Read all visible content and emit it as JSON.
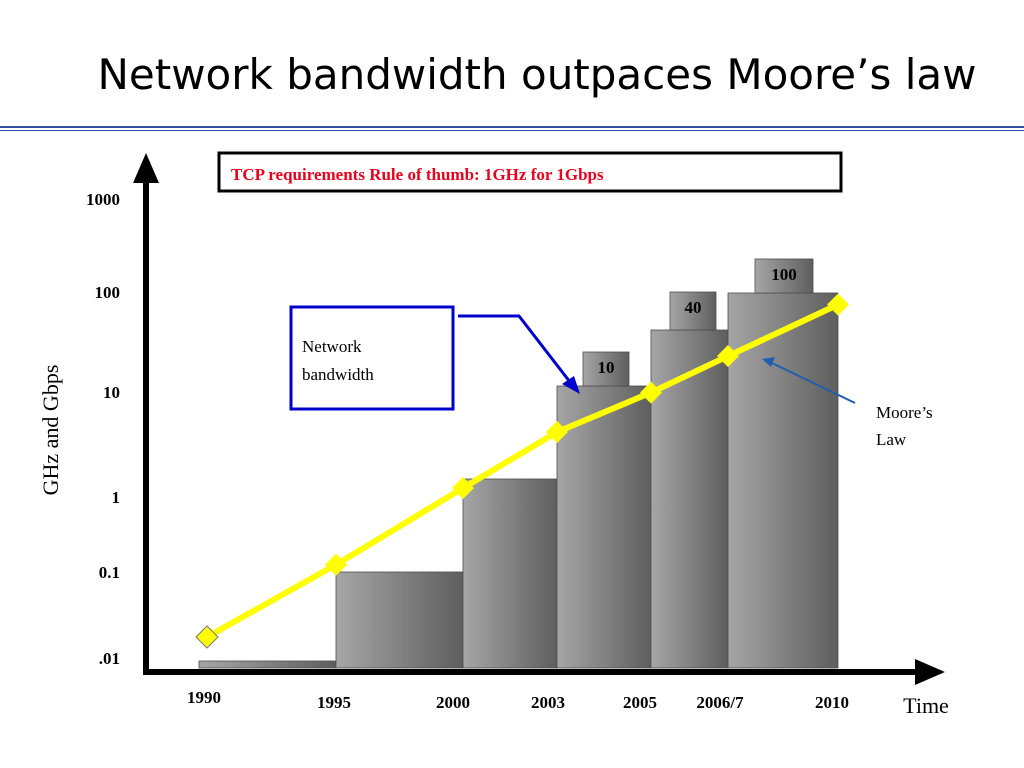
{
  "slide_title": "Network bandwidth outpaces Moore’s law",
  "colors": {
    "title_rule": "#2f4fa8",
    "bar_light": "#a6a6a6",
    "bar_dark": "#5e5e5e",
    "moore_line": "#ffff00",
    "callout_border": "#0000cc",
    "rule_text": "#e8001c",
    "moore_pointer": "#1f5fb0"
  },
  "chart_data": {
    "type": "bar",
    "title": "",
    "xlabel": "Time",
    "ylabel": "GHz and Gbps",
    "y_scale": "log",
    "ylim": [
      0.01,
      1000
    ],
    "y_ticks": [
      {
        "value": 1000,
        "label": "1000"
      },
      {
        "value": 100,
        "label": "100"
      },
      {
        "value": 10,
        "label": "10"
      },
      {
        "value": 1,
        "label": "1"
      },
      {
        "value": 0.1,
        "label": "0.1"
      },
      {
        "value": 0.01,
        "label": ".01"
      }
    ],
    "x_tick_labels": [
      "1990",
      "1995",
      "2000",
      "2003",
      "2005",
      "2006/7",
      "2010"
    ],
    "series": [
      {
        "name": "Network bandwidth",
        "kind": "bar",
        "periods": [
          {
            "from": "1990",
            "to": "1995",
            "value": 0.01
          },
          {
            "from": "1995",
            "to": "2000",
            "value": 0.1
          },
          {
            "from": "2000",
            "to": "2003",
            "value": 1
          },
          {
            "from": "2003",
            "to": "2005",
            "value": 10
          },
          {
            "from": "2005",
            "to": "2006/7",
            "value": 40
          },
          {
            "from": "2006/7",
            "to": "2010",
            "value": 100
          }
        ],
        "value_labels": [
          {
            "period": 3,
            "label": "10"
          },
          {
            "period": 4,
            "label": "40"
          },
          {
            "period": 5,
            "label": "100"
          }
        ]
      },
      {
        "name": "Moore’s Law",
        "kind": "line",
        "points": [
          {
            "x": "1990",
            "y": 0.02
          },
          {
            "x": "1995",
            "y": 0.12
          },
          {
            "x": "2000",
            "y": 0.8
          },
          {
            "x": "2003",
            "y": 3.2
          },
          {
            "x": "2005",
            "y": 8.5
          },
          {
            "x": "2006/7",
            "y": 21
          },
          {
            "x": "2010",
            "y": 75
          }
        ]
      }
    ],
    "annotations": {
      "rule_of_thumb": "TCP requirements Rule of thumb: 1GHz for 1Gbps",
      "network_bandwidth_lines": [
        "Network",
        "bandwidth"
      ],
      "moores_law_lines": [
        "Moore’s",
        "Law"
      ]
    },
    "grid": false,
    "legend": "none"
  }
}
